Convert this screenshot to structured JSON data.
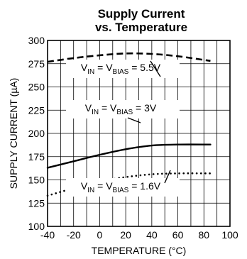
{
  "chart_data": {
    "type": "line",
    "title_line1": "Supply Current",
    "title_line2": "vs. Temperature",
    "xlabel": "TEMPERATURE (°C)",
    "ylabel": "SUPPLY CURRENT (µA)",
    "xlim": [
      -40,
      100
    ],
    "ylim": [
      100,
      300
    ],
    "xticks": [
      -40,
      -20,
      0,
      20,
      40,
      60,
      80,
      100
    ],
    "yticks": [
      100,
      125,
      150,
      175,
      200,
      225,
      250,
      275,
      300
    ],
    "grid": true,
    "series": [
      {
        "name": "V_IN = V_BIAS = 5.5V",
        "style": "dashed",
        "x": [
          -40,
          -20,
          0,
          20,
          40,
          60,
          85
        ],
        "y": [
          277,
          281,
          284,
          286,
          285.5,
          283,
          278
        ]
      },
      {
        "name": "V_IN = V_BIAS = 3V",
        "style": "solid",
        "x": [
          -40,
          -20,
          0,
          20,
          40,
          60,
          85
        ],
        "y": [
          163,
          170,
          177,
          183,
          187,
          188,
          188
        ]
      },
      {
        "name": "V_IN = V_BIAS = 1.6V",
        "style": "dotted",
        "x": [
          -40,
          -20,
          0,
          20,
          40,
          60,
          85
        ],
        "y": [
          133,
          141,
          148,
          153,
          156,
          157,
          157
        ]
      }
    ],
    "annotations": [
      {
        "prefix": "V",
        "sub1": "IN",
        "mid": " = V",
        "sub2": "BIAS",
        "suffix": " = 5.5V"
      },
      {
        "prefix": "V",
        "sub1": "IN",
        "mid": " = V",
        "sub2": "BIAS",
        "suffix": " = 3V"
      },
      {
        "prefix": "V",
        "sub1": "IN",
        "mid": " = V",
        "sub2": "BIAS",
        "suffix": " = 1.6V"
      }
    ]
  }
}
